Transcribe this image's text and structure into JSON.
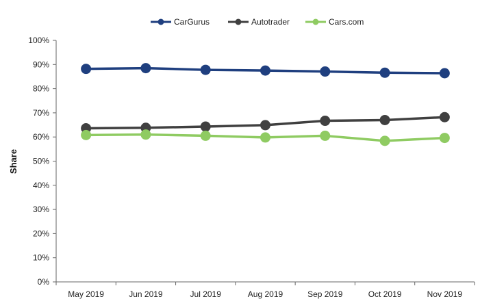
{
  "chart_data": {
    "type": "line",
    "categories": [
      "May 2019",
      "Jun 2019",
      "Jul 2019",
      "Aug 2019",
      "Sep 2019",
      "Oct 2019",
      "Nov 2019"
    ],
    "series": [
      {
        "name": "CarGurus",
        "color": "#1f3f7f",
        "values": [
          0.882,
          0.885,
          0.878,
          0.875,
          0.871,
          0.866,
          0.864
        ]
      },
      {
        "name": "Autotrader",
        "color": "#404040",
        "values": [
          0.636,
          0.638,
          0.643,
          0.649,
          0.667,
          0.67,
          0.682
        ]
      },
      {
        "name": "Cars.com",
        "color": "#8fcb62",
        "values": [
          0.608,
          0.61,
          0.605,
          0.598,
          0.605,
          0.584,
          0.596
        ]
      }
    ],
    "yticks": [
      "0%",
      "10%",
      "20%",
      "30%",
      "40%",
      "50%",
      "60%",
      "70%",
      "80%",
      "90%",
      "100%"
    ],
    "title": "",
    "xlabel": "",
    "ylabel": "Share",
    "ylim": [
      0,
      1
    ],
    "grid": false,
    "legend": "top-center"
  }
}
